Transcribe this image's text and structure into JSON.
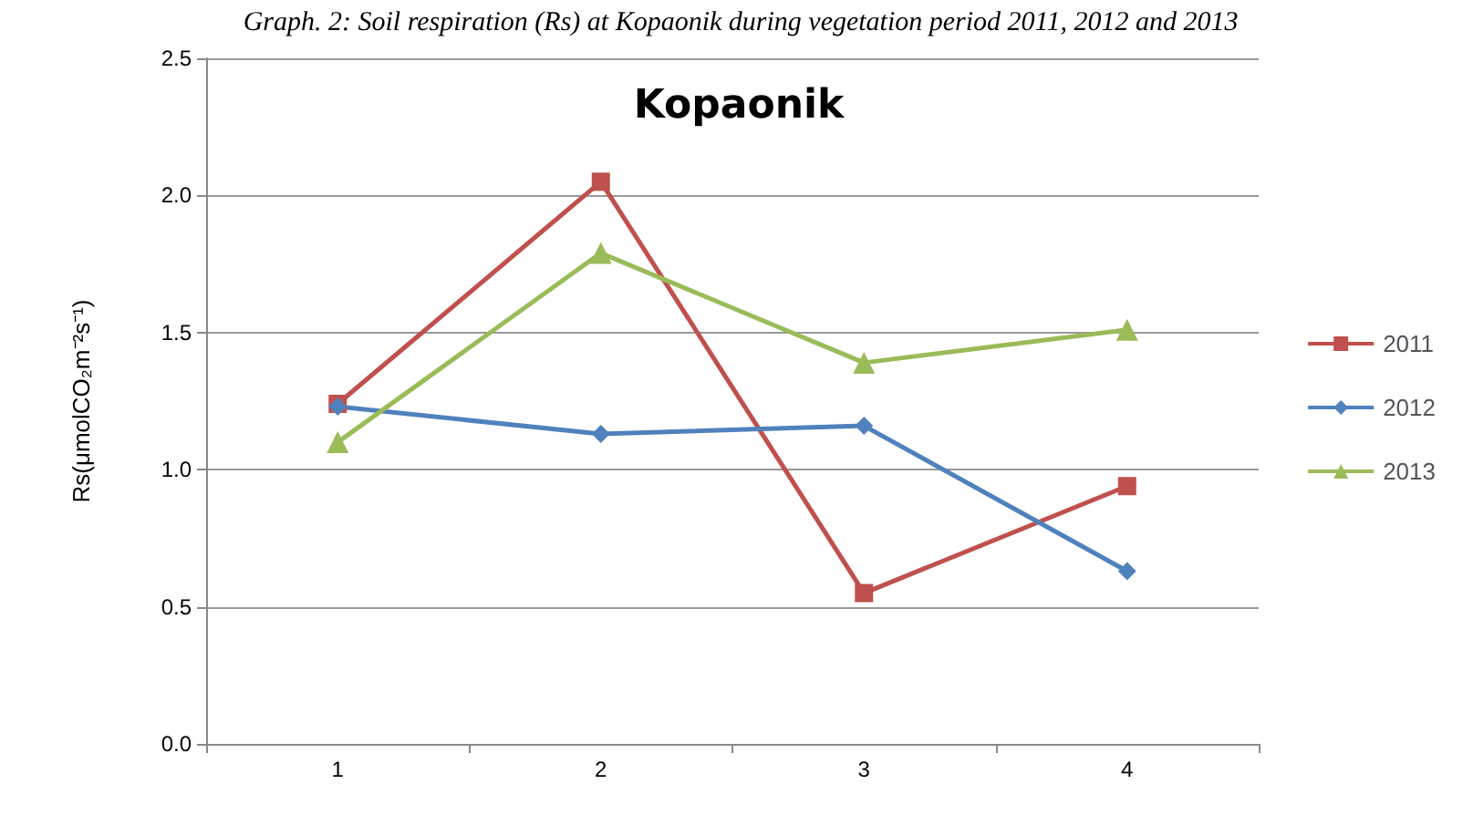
{
  "chart_data": {
    "type": "line",
    "title": "Kopaonik",
    "subtitle": "Graph. 2: Soil respiration (Rs) at Kopaonik during vegetation period 2011, 2012 and 2013",
    "ylabel": "Rs(μmolCO₂m⁻²s⁻¹)",
    "categories": [
      "1",
      "2",
      "3",
      "4"
    ],
    "series": [
      {
        "name": "2011",
        "color": "#c0504d",
        "marker": "square",
        "values": [
          1.24,
          2.05,
          0.55,
          0.94
        ]
      },
      {
        "name": "2012",
        "color": "#4f81bd",
        "marker": "diamond",
        "values": [
          1.23,
          1.13,
          1.16,
          0.63
        ]
      },
      {
        "name": "2013",
        "color": "#9bbb59",
        "marker": "triangle",
        "values": [
          1.1,
          1.79,
          1.39,
          1.51
        ]
      }
    ],
    "ylim": [
      0,
      2.5
    ],
    "yticks": [
      {
        "value": 0,
        "label": "0.0"
      },
      0.5,
      {
        "value": 1,
        "label": "1.0"
      },
      1.5,
      {
        "value": 2,
        "label": "2.0"
      },
      2.5
    ],
    "grid": "y",
    "legend": "right"
  }
}
